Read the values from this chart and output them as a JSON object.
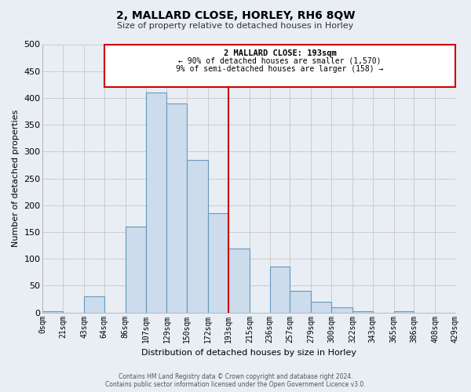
{
  "title": "2, MALLARD CLOSE, HORLEY, RH6 8QW",
  "subtitle": "Size of property relative to detached houses in Horley",
  "xlabel": "Distribution of detached houses by size in Horley",
  "ylabel": "Number of detached properties",
  "footer_line1": "Contains HM Land Registry data © Crown copyright and database right 2024.",
  "footer_line2": "Contains public sector information licensed under the Open Government Licence v3.0.",
  "bin_edges": [
    0,
    21,
    43,
    64,
    86,
    107,
    129,
    150,
    172,
    193,
    215,
    236,
    257,
    279,
    300,
    322,
    343,
    365,
    386,
    408,
    429
  ],
  "bin_labels": [
    "0sqm",
    "21sqm",
    "43sqm",
    "64sqm",
    "86sqm",
    "107sqm",
    "129sqm",
    "150sqm",
    "172sqm",
    "193sqm",
    "215sqm",
    "236sqm",
    "257sqm",
    "279sqm",
    "300sqm",
    "322sqm",
    "343sqm",
    "365sqm",
    "386sqm",
    "408sqm",
    "429sqm"
  ],
  "counts": [
    3,
    0,
    30,
    0,
    160,
    410,
    390,
    285,
    185,
    120,
    0,
    85,
    40,
    20,
    10,
    3,
    0,
    3,
    0,
    0
  ],
  "bar_color": "#ccdcec",
  "bar_edgecolor": "#6699bb",
  "vline_x": 193,
  "vline_color": "#cc0000",
  "annotation_title": "2 MALLARD CLOSE: 193sqm",
  "annotation_line1": "← 90% of detached houses are smaller (1,570)",
  "annotation_line2": "9% of semi-detached houses are larger (158) →",
  "annotation_box_facecolor": "#ffffff",
  "annotation_box_edgecolor": "#cc0000",
  "ann_xmin_data": 64,
  "ann_xmax_data": 429,
  "ann_ymin_data": 420,
  "ann_ymax_data": 500,
  "ylim": [
    0,
    500
  ],
  "xlim": [
    0,
    429
  ],
  "yticks": [
    0,
    50,
    100,
    150,
    200,
    250,
    300,
    350,
    400,
    450,
    500
  ],
  "grid_color": "#cccccc",
  "bg_color": "#e8eef4",
  "plot_bg_color": "#e8eef4",
  "title_fontsize": 10,
  "subtitle_fontsize": 8,
  "ylabel_fontsize": 8,
  "xlabel_fontsize": 8,
  "tick_fontsize": 7
}
